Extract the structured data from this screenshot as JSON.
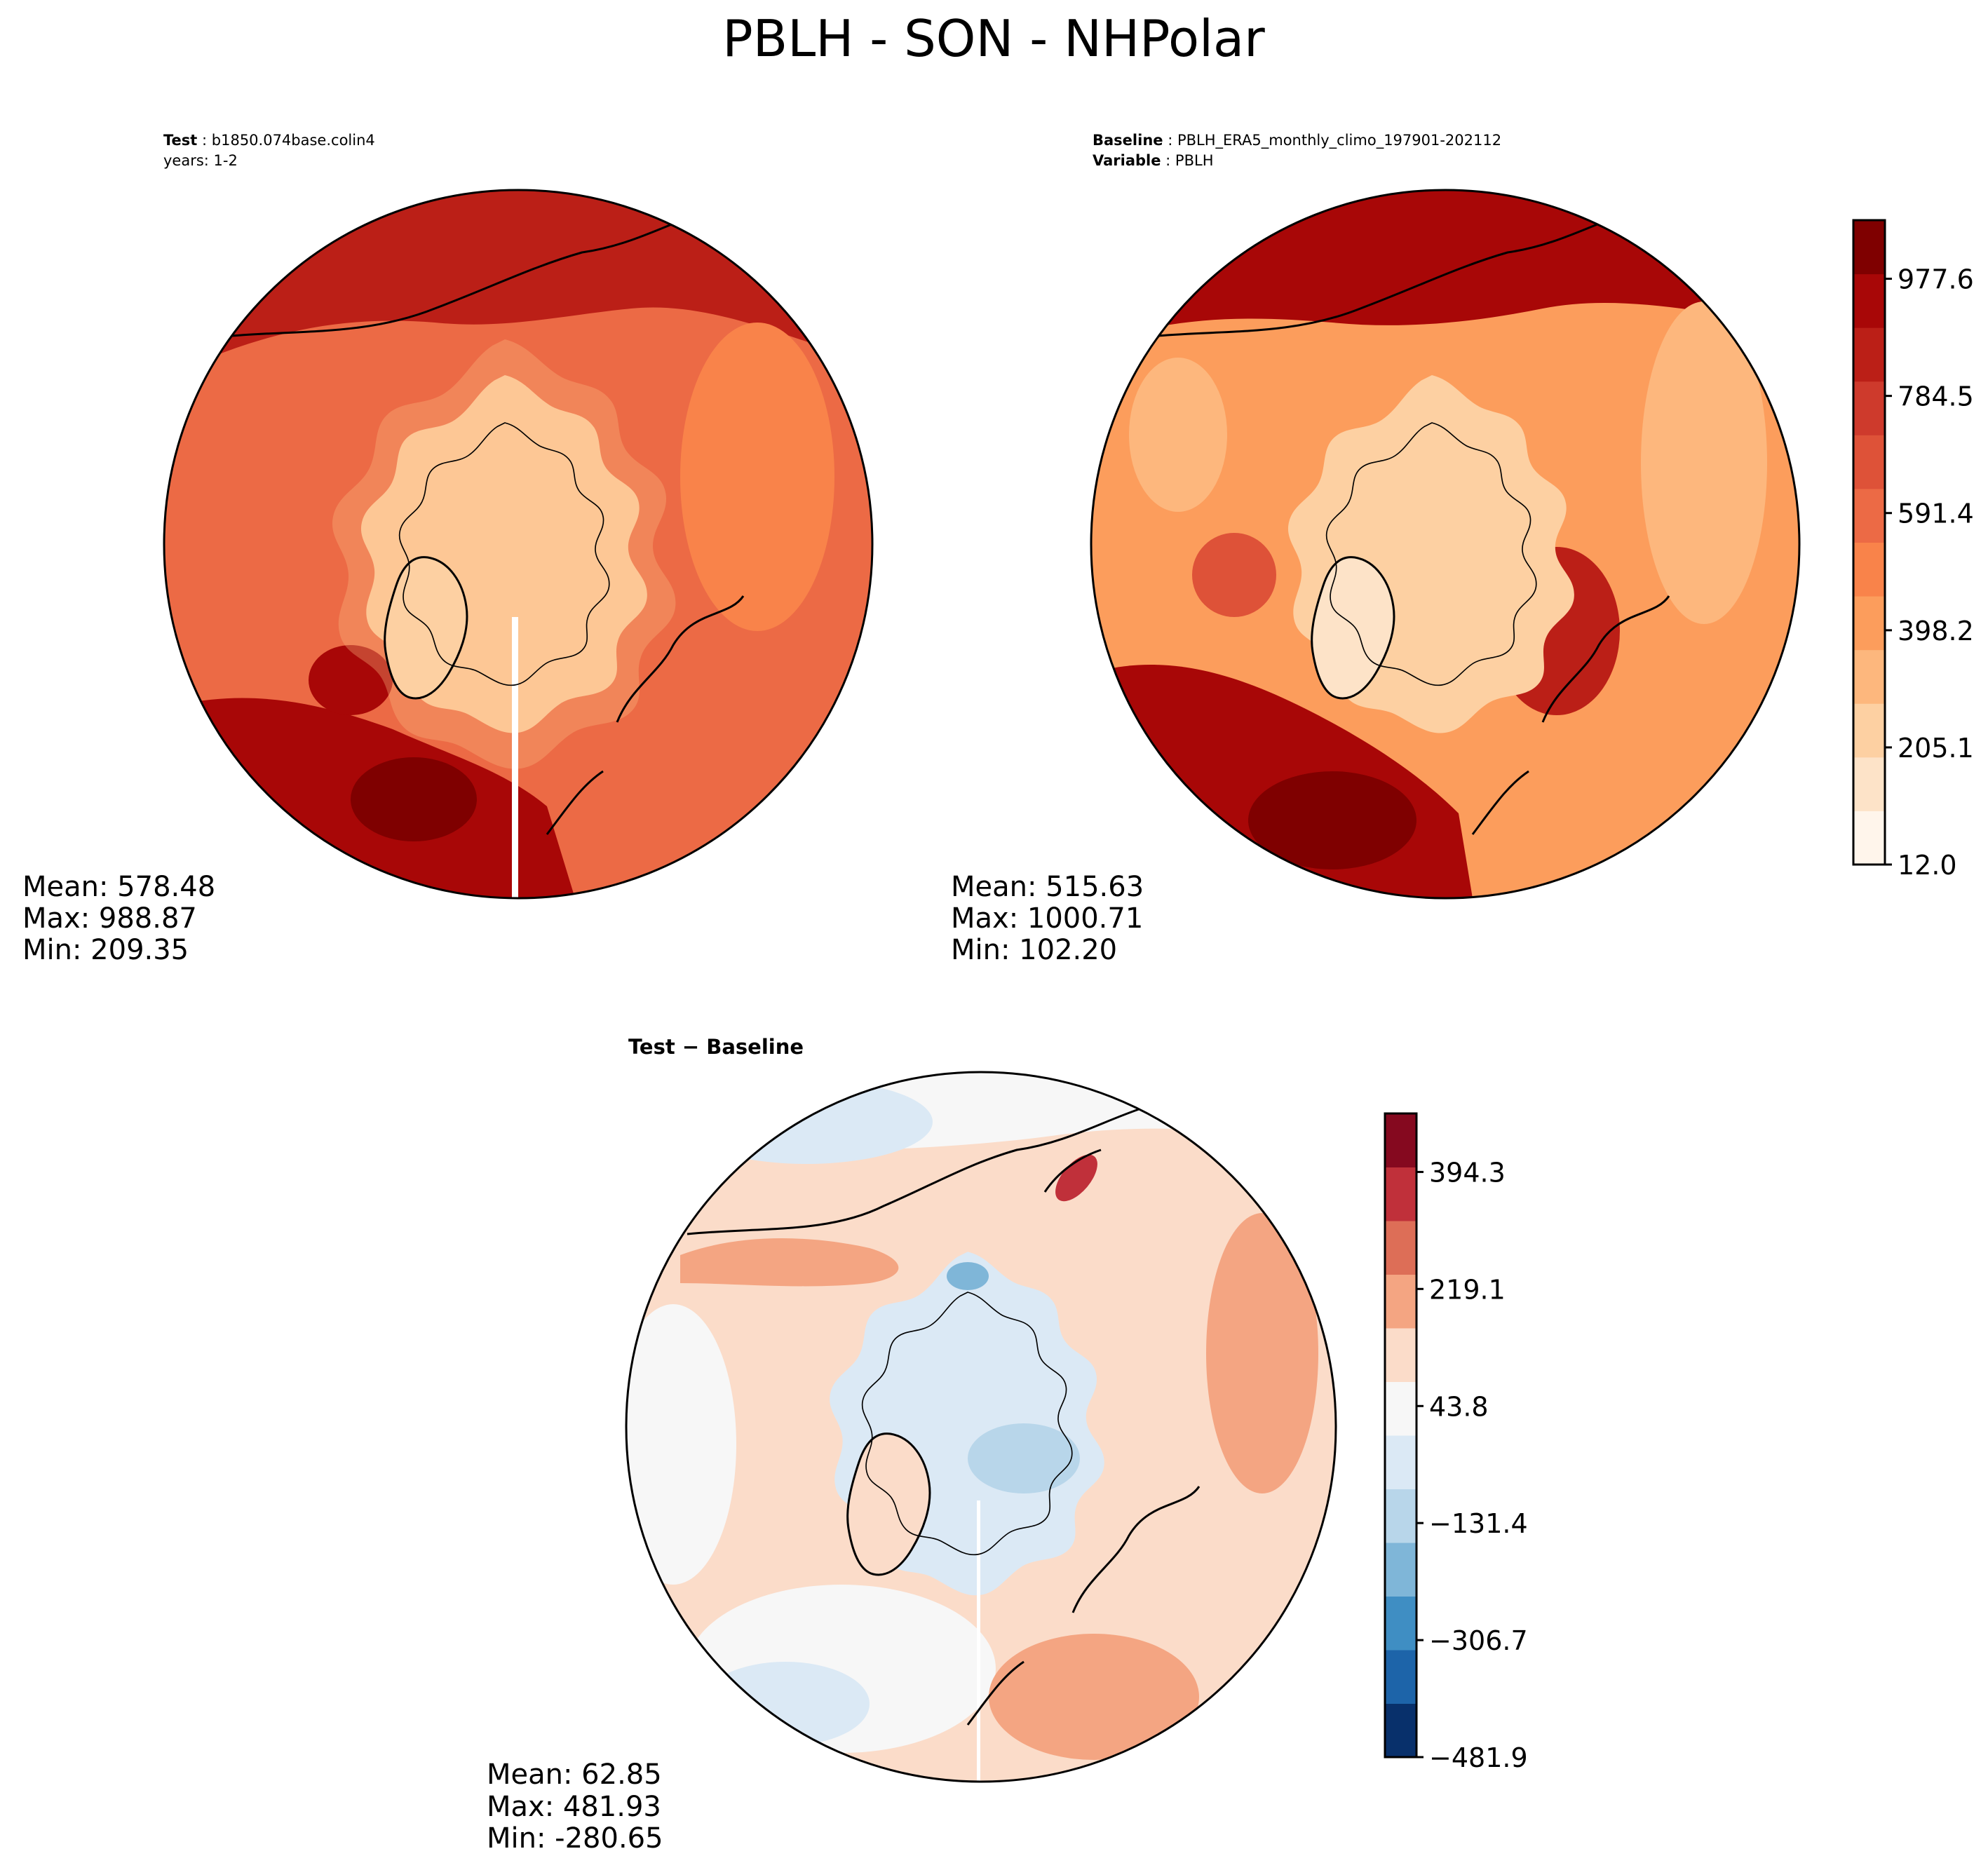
{
  "title": "PBLH - SON - NHPolar",
  "panels": [
    {
      "id": "test",
      "header": [
        {
          "bold": "Test",
          "sep": " : ",
          "text": "b1850.074base.colin4"
        },
        {
          "bold": "",
          "sep": "",
          "text": "years: 1-2"
        }
      ],
      "stats": {
        "mean": "Mean: 578.48",
        "max": "Max: 988.87",
        "min": "Min: 209.35"
      },
      "field": "test"
    },
    {
      "id": "baseline",
      "header": [
        {
          "bold": "Baseline",
          "sep": " : ",
          "text": "PBLH_ERA5_monthly_climo_197901-202112"
        },
        {
          "bold": "Variable",
          "sep": " : ",
          "text": "PBLH"
        }
      ],
      "stats": {
        "mean": "Mean: 515.63",
        "max": "Max: 1000.71",
        "min": "Min: 102.20"
      },
      "field": "baseline"
    },
    {
      "id": "diff",
      "header": [
        {
          "bold": "Test − Baseline",
          "sep": "",
          "text": ""
        }
      ],
      "stats": {
        "mean": "Mean: 62.85",
        "max": "Max: 481.93",
        "min": "Min: -280.65"
      },
      "field": "diff"
    }
  ],
  "chart_data": [
    {
      "type": "heatmap",
      "name": "colorbar-pblh",
      "projection": "North Polar Stereographic",
      "variable": "PBLH",
      "season": "SON",
      "range": [
        12.0,
        1074.2
      ],
      "ticks": [
        12.0,
        205.1,
        398.2,
        591.4,
        784.5,
        977.6
      ],
      "tick_labels": [
        "12.0",
        "205.1",
        "398.2",
        "591.4",
        "784.5",
        "977.6"
      ],
      "colors": [
        "#fff5eb",
        "#fde3c8",
        "#fdd0a2",
        "#fdb77d",
        "#fc9d5c",
        "#f9834a",
        "#ec6a45",
        "#de5238",
        "#ce3a2c",
        "#bb1f17",
        "#a80707",
        "#7f0000"
      ]
    },
    {
      "type": "heatmap",
      "name": "colorbar-diff",
      "projection": "North Polar Stereographic",
      "variable": "PBLH difference",
      "range": [
        -481.9,
        481.9
      ],
      "ticks": [
        -481.9,
        -306.7,
        -131.4,
        43.8,
        219.1,
        394.3
      ],
      "tick_labels": [
        "−481.9",
        "−306.7",
        "−131.4",
        "43.8",
        "219.1",
        "394.3"
      ],
      "colors": [
        "#08306b",
        "#1d64a9",
        "#3f8ec3",
        "#7fb6d8",
        "#b8d6ea",
        "#dbe9f5",
        "#f7f7f7",
        "#fbdcc9",
        "#f4a582",
        "#dd6e57",
        "#c0303a",
        "#85091f"
      ]
    }
  ]
}
